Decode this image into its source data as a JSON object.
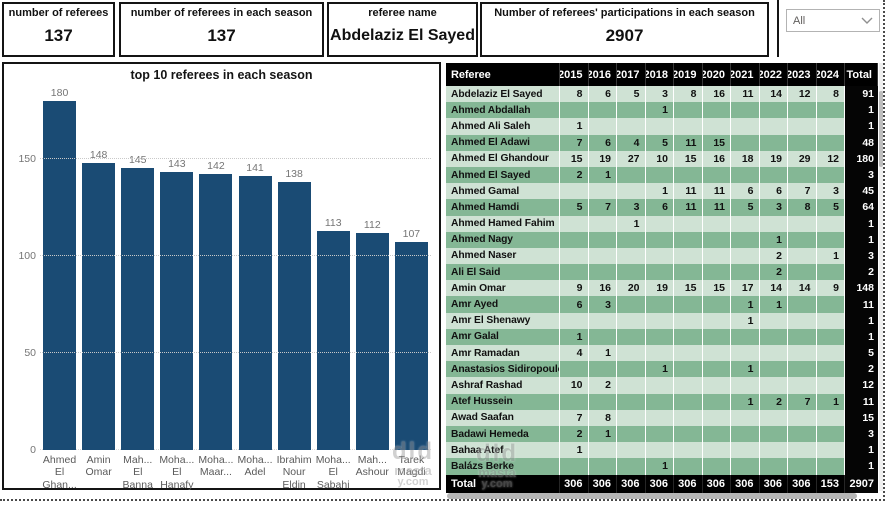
{
  "cards": [
    {
      "title": "number of referees",
      "value": "137"
    },
    {
      "title": "number of referees in each season",
      "value": "137"
    },
    {
      "title": "referee name",
      "value": "Abdelaziz El Sayed"
    },
    {
      "title": "Number of referees' participations in each season",
      "value": "2907"
    }
  ],
  "slicer": {
    "value": "All"
  },
  "chart_data": {
    "type": "bar",
    "title": "top 10 referees in each season",
    "categories": [
      "Ahmed El Ghan...",
      "Amin Omar",
      "Mah... El Banna",
      "Moha... El Hanafy",
      "Moha... Maar...",
      "Moha... Adel",
      "Ibrahim Nour Eldin",
      "Moha... El Sabahi",
      "Mah... Ashour",
      "Tarek Magdi"
    ],
    "label_lines": [
      [
        "Ahmed",
        "El",
        "Ghan..."
      ],
      [
        "Amin",
        "Omar"
      ],
      [
        "Mah...",
        "El",
        "Banna"
      ],
      [
        "Moha...",
        "El",
        "Hanafy"
      ],
      [
        "Moha...",
        "Maar..."
      ],
      [
        "Moha...",
        "Adel"
      ],
      [
        "Ibrahim",
        "Nour",
        "Eldin"
      ],
      [
        "Moha...",
        "El",
        "Sabahi"
      ],
      [
        "Mah...",
        "Ashour"
      ],
      [
        "Tarek",
        "Magdi"
      ]
    ],
    "values": [
      180,
      148,
      145,
      143,
      142,
      141,
      138,
      113,
      112,
      107
    ],
    "xlabel": "",
    "ylabel": "",
    "yticks": [
      0,
      50,
      100,
      150
    ],
    "ylim": [
      0,
      188
    ],
    "grid": "dotted horizontal",
    "legend": "none",
    "bar_color": "#1a4b74"
  },
  "table": {
    "columns": [
      "Referee",
      "2015",
      "2016",
      "2017",
      "2018",
      "2019",
      "2020",
      "2021",
      "2022",
      "2023",
      "2024",
      "Total"
    ],
    "rows": [
      {
        "name": "Abdelaziz El Sayed",
        "values": [
          "8",
          "6",
          "5",
          "3",
          "8",
          "16",
          "11",
          "14",
          "12",
          "8"
        ],
        "total": "91"
      },
      {
        "name": "Ahmed Abdallah",
        "values": [
          "",
          "",
          "",
          "1",
          "",
          "",
          "",
          "",
          "",
          ""
        ],
        "total": "1"
      },
      {
        "name": "Ahmed Ali Saleh",
        "values": [
          "1",
          "",
          "",
          "",
          "",
          "",
          "",
          "",
          "",
          ""
        ],
        "total": "1"
      },
      {
        "name": "Ahmed El Adawi",
        "values": [
          "7",
          "6",
          "4",
          "5",
          "11",
          "15",
          "",
          "",
          "",
          ""
        ],
        "total": "48"
      },
      {
        "name": "Ahmed El Ghandour",
        "values": [
          "15",
          "19",
          "27",
          "10",
          "15",
          "16",
          "18",
          "19",
          "29",
          "12"
        ],
        "total": "180"
      },
      {
        "name": "Ahmed El Sayed",
        "values": [
          "2",
          "1",
          "",
          "",
          "",
          "",
          "",
          "",
          "",
          ""
        ],
        "total": "3"
      },
      {
        "name": "Ahmed Gamal",
        "values": [
          "",
          "",
          "",
          "1",
          "11",
          "11",
          "6",
          "6",
          "7",
          "3"
        ],
        "total": "45"
      },
      {
        "name": "Ahmed Hamdi",
        "values": [
          "5",
          "7",
          "3",
          "6",
          "11",
          "11",
          "5",
          "3",
          "8",
          "5"
        ],
        "total": "64"
      },
      {
        "name": "Ahmed Hamed Fahim",
        "values": [
          "",
          "",
          "1",
          "",
          "",
          "",
          "",
          "",
          "",
          ""
        ],
        "total": "1"
      },
      {
        "name": "Ahmed Nagy",
        "values": [
          "",
          "",
          "",
          "",
          "",
          "",
          "",
          "1",
          "",
          ""
        ],
        "total": "1"
      },
      {
        "name": "Ahmed Naser",
        "values": [
          "",
          "",
          "",
          "",
          "",
          "",
          "",
          "2",
          "",
          "1"
        ],
        "total": "3"
      },
      {
        "name": "Ali El Said",
        "values": [
          "",
          "",
          "",
          "",
          "",
          "",
          "",
          "2",
          "",
          ""
        ],
        "total": "2"
      },
      {
        "name": "Amin Omar",
        "values": [
          "9",
          "16",
          "20",
          "19",
          "15",
          "15",
          "17",
          "14",
          "14",
          "9"
        ],
        "total": "148"
      },
      {
        "name": "Amr Ayed",
        "values": [
          "6",
          "3",
          "",
          "",
          "",
          "",
          "1",
          "1",
          "",
          ""
        ],
        "total": "11"
      },
      {
        "name": "Amr El Shenawy",
        "values": [
          "",
          "",
          "",
          "",
          "",
          "",
          "1",
          "",
          "",
          ""
        ],
        "total": "1"
      },
      {
        "name": "Amr Galal",
        "values": [
          "1",
          "",
          "",
          "",
          "",
          "",
          "",
          "",
          "",
          ""
        ],
        "total": "1"
      },
      {
        "name": "Amr Ramadan",
        "values": [
          "4",
          "1",
          "",
          "",
          "",
          "",
          "",
          "",
          "",
          ""
        ],
        "total": "5"
      },
      {
        "name": "Anastasios Sidiropoulos",
        "values": [
          "",
          "",
          "",
          "1",
          "",
          "",
          "1",
          "",
          "",
          ""
        ],
        "total": "2"
      },
      {
        "name": "Ashraf Rashad",
        "values": [
          "10",
          "2",
          "",
          "",
          "",
          "",
          "",
          "",
          "",
          ""
        ],
        "total": "12"
      },
      {
        "name": "Atef Hussein",
        "values": [
          "",
          "",
          "",
          "",
          "",
          "",
          "1",
          "2",
          "7",
          "1"
        ],
        "total": "11"
      },
      {
        "name": "Awad Saafan",
        "values": [
          "7",
          "8",
          "",
          "",
          "",
          "",
          "",
          "",
          "",
          ""
        ],
        "total": "15"
      },
      {
        "name": "Badawi Hemeda",
        "values": [
          "2",
          "1",
          "",
          "",
          "",
          "",
          "",
          "",
          "",
          ""
        ],
        "total": "3"
      },
      {
        "name": "Bahaa Atef",
        "values": [
          "1",
          "",
          "",
          "",
          "",
          "",
          "",
          "",
          "",
          ""
        ],
        "total": "1"
      },
      {
        "name": "Balázs Berke",
        "values": [
          "",
          "",
          "",
          "1",
          "",
          "",
          "",
          "",
          "",
          ""
        ],
        "total": "1"
      }
    ],
    "total_row": {
      "label": "Total",
      "values": [
        "306",
        "306",
        "306",
        "306",
        "306",
        "306",
        "306",
        "306",
        "306",
        "153"
      ],
      "total": "2907"
    }
  },
  "watermark": {
    "line1": "dld",
    "line2": "masta",
    "line3": "y.com"
  }
}
